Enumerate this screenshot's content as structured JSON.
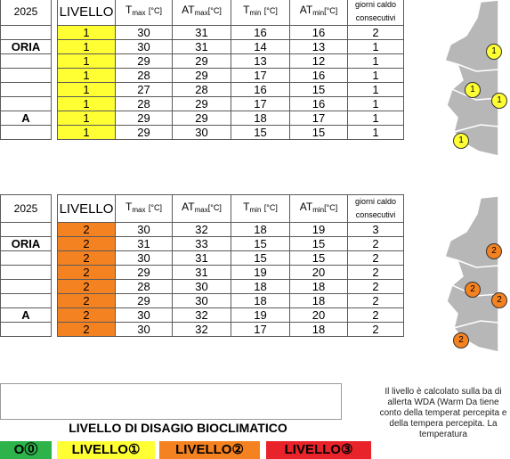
{
  "colors": {
    "level1": "#ffff33",
    "level2": "#f58220",
    "level0": "#2db34a",
    "level3": "#e8232a"
  },
  "table1": {
    "date": "2025",
    "level_header": "LIVELLO",
    "headers": {
      "tmax": "T",
      "tmax_sub": "max",
      "tmax_unit": "[°C]",
      "atmax": "AT",
      "atmax_sub": "max",
      "atmax_unit": "[°C]",
      "tmin": "T",
      "tmin_sub": "min",
      "tmin_unit": "[°C]",
      "atmin": "AT",
      "atmin_sub": "min",
      "atmin_unit": "[°C]",
      "days": "giorni caldo consecutivi"
    },
    "rows": [
      {
        "prov": "",
        "level": "1",
        "tmax": "30",
        "atmax": "31",
        "tmin": "16",
        "atmin": "16",
        "days": "2"
      },
      {
        "prov": "ORIA",
        "level": "1",
        "tmax": "30",
        "atmax": "31",
        "tmin": "14",
        "atmin": "13",
        "days": "1"
      },
      {
        "prov": "",
        "level": "1",
        "tmax": "29",
        "atmax": "29",
        "tmin": "13",
        "atmin": "12",
        "days": "1"
      },
      {
        "prov": "",
        "level": "1",
        "tmax": "28",
        "atmax": "29",
        "tmin": "17",
        "atmin": "16",
        "days": "1"
      },
      {
        "prov": "",
        "level": "1",
        "tmax": "27",
        "atmax": "28",
        "tmin": "16",
        "atmin": "15",
        "days": "1"
      },
      {
        "prov": "",
        "level": "1",
        "tmax": "28",
        "atmax": "29",
        "tmin": "17",
        "atmin": "16",
        "days": "1"
      },
      {
        "prov": "A",
        "level": "1",
        "tmax": "29",
        "atmax": "29",
        "tmin": "18",
        "atmin": "17",
        "days": "1"
      },
      {
        "prov": "",
        "level": "1",
        "tmax": "29",
        "atmax": "30",
        "tmin": "15",
        "atmin": "15",
        "days": "1"
      }
    ]
  },
  "table2": {
    "date": "2025",
    "level_header": "LIVELLO",
    "headers": {
      "tmax": "T",
      "tmax_sub": "max",
      "tmax_unit": "[°C]",
      "atmax": "AT",
      "atmax_sub": "max",
      "atmax_unit": "[°C]",
      "tmin": "T",
      "tmin_sub": "min",
      "tmin_unit": "[°C]",
      "atmin": "AT",
      "atmin_sub": "min",
      "atmin_unit": "[°C]",
      "days": "giorni caldo consecutivi"
    },
    "rows": [
      {
        "prov": "",
        "level": "2",
        "tmax": "30",
        "atmax": "32",
        "tmin": "18",
        "atmin": "19",
        "days": "3"
      },
      {
        "prov": "ORIA",
        "level": "2",
        "tmax": "31",
        "atmax": "33",
        "tmin": "15",
        "atmin": "15",
        "days": "2"
      },
      {
        "prov": "",
        "level": "2",
        "tmax": "30",
        "atmax": "31",
        "tmin": "15",
        "atmin": "15",
        "days": "2"
      },
      {
        "prov": "",
        "level": "2",
        "tmax": "29",
        "atmax": "31",
        "tmin": "19",
        "atmin": "20",
        "days": "2"
      },
      {
        "prov": "",
        "level": "2",
        "tmax": "28",
        "atmax": "30",
        "tmin": "18",
        "atmin": "18",
        "days": "2"
      },
      {
        "prov": "",
        "level": "2",
        "tmax": "29",
        "atmax": "30",
        "tmin": "18",
        "atmin": "18",
        "days": "2"
      },
      {
        "prov": "A",
        "level": "2",
        "tmax": "30",
        "atmax": "32",
        "tmin": "19",
        "atmin": "20",
        "days": "2"
      },
      {
        "prov": "",
        "level": "2",
        "tmax": "30",
        "atmax": "32",
        "tmin": "17",
        "atmin": "18",
        "days": "2"
      }
    ]
  },
  "map1_badges": [
    "1",
    "1",
    "1",
    "1"
  ],
  "map2_badges": [
    "2",
    "2",
    "2",
    "2"
  ],
  "note": "Il livello è calcolato sulla ba di allerta WDA (Warm Da tiene conto della temperat percepita e della tempera percepita. La temperatura",
  "legend": {
    "title": "LIVELLO DI DISAGIO BIOCLIMATICO",
    "l0": "O⓪",
    "l1": "LIVELLO①",
    "l2": "LIVELLO②",
    "l3": "LIVELLO③"
  }
}
